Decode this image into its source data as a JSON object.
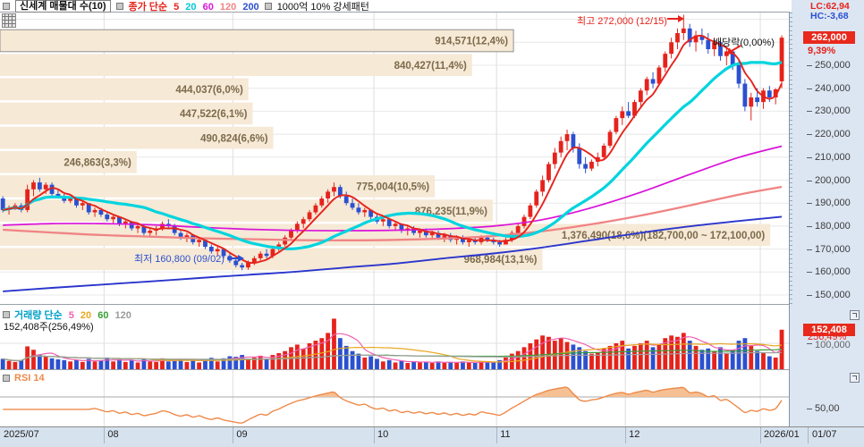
{
  "legend": {
    "stock_title": "신세계 매물대 수(10)",
    "price_ma": {
      "label": "종가 단순",
      "label_color": "#e5231c",
      "periods": [
        {
          "t": "5",
          "c": "#e5231c"
        },
        {
          "t": "20",
          "c": "#00c8d8"
        },
        {
          "t": "60",
          "c": "#d913d9"
        },
        {
          "t": "120",
          "c": "#f08484"
        },
        {
          "t": "200",
          "c": "#2b50d0"
        }
      ]
    },
    "pattern": "1000억 10% 강세패턴"
  },
  "volume": {
    "legend": {
      "label": "거래량 단순",
      "label_color": "#00a0c8",
      "periods": [
        {
          "t": "5",
          "c": "#f060b0"
        },
        {
          "t": "20",
          "c": "#e8a820"
        },
        {
          "t": "60",
          "c": "#3aa03a"
        },
        {
          "t": "120",
          "c": "#9a9a9a"
        }
      ]
    },
    "status": "152,408주(256,49%)"
  },
  "rsi_panel": {
    "title": "RSI 14",
    "color": "#ee8a4a"
  },
  "corner": {
    "lc": "LC:62,94",
    "hc": "HC:-3,68",
    "lc_color": "#e5231c",
    "hc_color": "#2b50d0"
  },
  "axis": {
    "price_badge": "262,000",
    "price_badge_pct": "9,39%",
    "price_ticks": [
      {
        "v": 250000,
        "label": "250,000"
      },
      {
        "v": 240000,
        "label": "240,000"
      },
      {
        "v": 230000,
        "label": "230,000"
      },
      {
        "v": 220000,
        "label": "220,000"
      },
      {
        "v": 210000,
        "label": "210,000"
      },
      {
        "v": 200000,
        "label": "200,000"
      },
      {
        "v": 190000,
        "label": "190,000"
      },
      {
        "v": 180000,
        "label": "180,000"
      },
      {
        "v": 170000,
        "label": "170,000"
      },
      {
        "v": 160000,
        "label": "160,000"
      },
      {
        "v": 150000,
        "label": "150,000"
      }
    ],
    "volume_badge": "152,408",
    "volume_badge_pct": "256,49%",
    "volume_grid_label": "100,000",
    "rsi_mid_label": "50,00",
    "time_right_label": "01/07"
  },
  "annotations": {
    "high": {
      "text": "최고 272,000 (12/15)",
      "day": 111,
      "price": 272000,
      "color": "#e5231c"
    },
    "low": {
      "text": "최저 160,800 (09/02)",
      "day": 39,
      "price": 160800,
      "color": "#2b50d0"
    },
    "dividend": {
      "text": "배당락(0,00%)",
      "day": 119,
      "color": "#111111",
      "marker_color": "#e5231c"
    }
  },
  "colors": {
    "up": "#e5231c",
    "down": "#2b50d0",
    "profile_fill": "#f6e9d6",
    "profile_text": "#7c6a4b",
    "ma5": "#e5231c",
    "ma20": "#00d4de",
    "ma60": "#d913d9",
    "ma120": "#f08484",
    "ma200": "#2a35cc",
    "vma5": "#f060b0",
    "vma20": "#e8a820",
    "vma60": "#3aa03a",
    "vma120": "#a0a0a0",
    "rsi_line": "#ee8a4a",
    "rsi_fill": "#f4b988",
    "badge_bg": "#e8291c",
    "grid": "#e8e8e8",
    "month_grid": "#dedede"
  },
  "chart_data": {
    "type": "candlestick",
    "title": "신세계 매물대 수(10)",
    "price_unit": "KRW",
    "ylim": [
      147000,
      266000
    ],
    "months": [
      {
        "label": "2025/07",
        "boundary_day": -0.5
      },
      {
        "label": "08",
        "boundary_day": 16.5
      },
      {
        "label": "09",
        "boundary_day": 37.5
      },
      {
        "label": "10",
        "boundary_day": 60.5
      },
      {
        "label": "11",
        "boundary_day": 80.5
      },
      {
        "label": "12",
        "boundary_day": 101.5
      },
      {
        "label": "2026/01",
        "boundary_day": 123.5
      }
    ],
    "volume_profile": {
      "bars": [
        {
          "label": "914,571(12,4%)",
          "pct": 12.4,
          "selected": true
        },
        {
          "label": "840,427(11,4%)",
          "pct": 11.4,
          "selected": false
        },
        {
          "label": "444,037(6,0%)",
          "pct": 6.0,
          "selected": false
        },
        {
          "label": "447,522(6,1%)",
          "pct": 6.1,
          "selected": false
        },
        {
          "label": "490,824(6,6%)",
          "pct": 6.6,
          "selected": false
        },
        {
          "label": "246,863(3,3%)",
          "pct": 3.3,
          "selected": false
        },
        {
          "label": "775,004(10,5%)",
          "pct": 10.5,
          "selected": false
        },
        {
          "label": "876,235(11,9%)",
          "pct": 11.9,
          "selected": false
        },
        {
          "label": "1,376,490(18,6%)(182,700,00 ~ 172,100,00)",
          "pct": 18.6,
          "selected": false
        },
        {
          "label": "968,984(13,1%)",
          "pct": 13.1,
          "selected": false
        }
      ]
    },
    "ma_long": {
      "days": [
        0,
        8,
        16,
        24,
        32,
        40,
        48,
        56,
        64,
        72,
        80,
        88,
        96,
        104,
        112,
        120,
        127
      ],
      "ma60": [
        180400,
        181100,
        181100,
        180600,
        179500,
        178600,
        178100,
        178000,
        178200,
        178800,
        180000,
        182800,
        188000,
        194700,
        202500,
        209900,
        214800
      ],
      "ma120": [
        178400,
        177200,
        176100,
        175400,
        174700,
        174300,
        173900,
        173800,
        174000,
        174600,
        175700,
        177800,
        180800,
        184600,
        189000,
        193700,
        197100
      ],
      "ma200": [
        151600,
        153100,
        154500,
        155900,
        157400,
        158800,
        160200,
        162000,
        163700,
        166000,
        168100,
        170700,
        173900,
        177100,
        179900,
        182200,
        184100
      ]
    },
    "rsi": {
      "period": 14,
      "upper_level": 70,
      "mid_level": 50
    },
    "volume_gridline": 100000,
    "last_volume": 152408,
    "candles": [
      [
        192000,
        193000,
        186000,
        187000,
        40000
      ],
      [
        187000,
        189000,
        185000,
        188000,
        32000
      ],
      [
        188000,
        190000,
        187000,
        189000,
        28000
      ],
      [
        189000,
        190000,
        186000,
        187000,
        35000
      ],
      [
        187000,
        198000,
        186000,
        196000,
        88000
      ],
      [
        196000,
        200000,
        193000,
        199000,
        75000
      ],
      [
        199000,
        201000,
        195000,
        196000,
        55000
      ],
      [
        196000,
        199000,
        194000,
        198000,
        48000
      ],
      [
        198000,
        199000,
        193000,
        194000,
        42000
      ],
      [
        194000,
        196000,
        192000,
        193000,
        38000
      ],
      [
        193000,
        194000,
        190000,
        191000,
        35000
      ],
      [
        191000,
        193000,
        190000,
        192000,
        30000
      ],
      [
        192000,
        192000,
        188000,
        189000,
        36000
      ],
      [
        189000,
        191000,
        187000,
        190000,
        28000
      ],
      [
        190000,
        190000,
        185000,
        186000,
        40000
      ],
      [
        186000,
        188000,
        184000,
        187000,
        30000
      ],
      [
        187000,
        188000,
        184000,
        185000,
        33000
      ],
      [
        185000,
        186000,
        182000,
        183000,
        45000
      ],
      [
        183000,
        185000,
        181000,
        184000,
        30000
      ],
      [
        184000,
        184000,
        180000,
        181000,
        38000
      ],
      [
        181000,
        183000,
        179000,
        182000,
        28000
      ],
      [
        182000,
        182000,
        178000,
        179000,
        35000
      ],
      [
        179000,
        181000,
        177000,
        180000,
        26000
      ],
      [
        180000,
        181000,
        176000,
        177000,
        40000
      ],
      [
        177000,
        179000,
        175000,
        178000,
        30000
      ],
      [
        178000,
        180000,
        176000,
        179000,
        28000
      ],
      [
        179000,
        182000,
        178000,
        181000,
        42000
      ],
      [
        181000,
        183000,
        179000,
        180000,
        30000
      ],
      [
        180000,
        181000,
        176000,
        177000,
        36000
      ],
      [
        177000,
        178000,
        174000,
        175000,
        40000
      ],
      [
        175000,
        177000,
        173000,
        176000,
        28000
      ],
      [
        176000,
        176000,
        172000,
        173000,
        38000
      ],
      [
        173000,
        175000,
        171000,
        174000,
        26000
      ],
      [
        174000,
        174000,
        170000,
        171000,
        36000
      ],
      [
        171000,
        172000,
        168000,
        169000,
        44000
      ],
      [
        169000,
        171000,
        167000,
        170000,
        30000
      ],
      [
        170000,
        170000,
        166000,
        167000,
        42000
      ],
      [
        167000,
        168000,
        164000,
        165000,
        50000
      ],
      [
        165000,
        166000,
        162000,
        163000,
        48000
      ],
      [
        163000,
        164000,
        160800,
        162000,
        55000
      ],
      [
        162000,
        165000,
        161000,
        164000,
        40000
      ],
      [
        164000,
        167000,
        163000,
        166000,
        45000
      ],
      [
        166000,
        169000,
        165000,
        168000,
        52000
      ],
      [
        168000,
        170000,
        166000,
        167000,
        38000
      ],
      [
        167000,
        171000,
        166000,
        170000,
        55000
      ],
      [
        170000,
        173000,
        169000,
        172000,
        62000
      ],
      [
        172000,
        176000,
        171000,
        175000,
        70000
      ],
      [
        175000,
        179000,
        174000,
        178000,
        85000
      ],
      [
        178000,
        182000,
        177000,
        181000,
        95000
      ],
      [
        181000,
        184000,
        179000,
        183000,
        80000
      ],
      [
        183000,
        187000,
        182000,
        186000,
        100000
      ],
      [
        186000,
        190000,
        185000,
        189000,
        110000
      ],
      [
        189000,
        193000,
        188000,
        192000,
        120000
      ],
      [
        192000,
        196000,
        190000,
        195000,
        140000
      ],
      [
        195000,
        199000,
        193000,
        197000,
        195000
      ],
      [
        197000,
        198000,
        192000,
        193000,
        120000
      ],
      [
        193000,
        195000,
        189000,
        190000,
        90000
      ],
      [
        190000,
        192000,
        187000,
        188000,
        70000
      ],
      [
        188000,
        190000,
        185000,
        186000,
        60000
      ],
      [
        186000,
        188000,
        184000,
        187000,
        45000
      ],
      [
        187000,
        187000,
        183000,
        184000,
        50000
      ],
      [
        184000,
        185000,
        181000,
        182000,
        40000
      ],
      [
        182000,
        184000,
        180000,
        183000,
        30000
      ],
      [
        183000,
        183000,
        179000,
        180000,
        35000
      ],
      [
        180000,
        182000,
        178000,
        181000,
        26000
      ],
      [
        181000,
        181000,
        177000,
        178000,
        32000
      ],
      [
        178000,
        180000,
        176000,
        179000,
        24000
      ],
      [
        179000,
        180000,
        176000,
        177000,
        30000
      ],
      [
        177000,
        179000,
        175000,
        178000,
        26000
      ],
      [
        178000,
        179000,
        175000,
        176000,
        28000
      ],
      [
        176000,
        178000,
        174000,
        177000,
        24000
      ],
      [
        177000,
        178000,
        174000,
        175000,
        30000
      ],
      [
        175000,
        177000,
        173000,
        176000,
        25000
      ],
      [
        176000,
        177000,
        173000,
        174000,
        28000
      ],
      [
        174000,
        176000,
        172000,
        175000,
        24000
      ],
      [
        175000,
        176000,
        172000,
        173000,
        30000
      ],
      [
        173000,
        175000,
        171000,
        174000,
        26000
      ],
      [
        174000,
        175000,
        172000,
        173000,
        24000
      ],
      [
        173000,
        176000,
        172000,
        175000,
        30000
      ],
      [
        175000,
        176000,
        173000,
        174000,
        26000
      ],
      [
        174000,
        175000,
        172000,
        173000,
        28000
      ],
      [
        173000,
        174000,
        171000,
        172000,
        35000
      ],
      [
        172000,
        175000,
        172000,
        174000,
        45000
      ],
      [
        174000,
        178000,
        173000,
        177000,
        60000
      ],
      [
        177000,
        181000,
        176000,
        180000,
        70000
      ],
      [
        180000,
        185000,
        179000,
        184000,
        85000
      ],
      [
        184000,
        190000,
        183000,
        189000,
        100000
      ],
      [
        189000,
        196000,
        188000,
        195000,
        115000
      ],
      [
        195000,
        202000,
        193000,
        200000,
        130000
      ],
      [
        200000,
        208000,
        199000,
        207000,
        125000
      ],
      [
        207000,
        214000,
        205000,
        212000,
        110000
      ],
      [
        212000,
        219000,
        210000,
        217000,
        120000
      ],
      [
        217000,
        222000,
        213000,
        220000,
        105000
      ],
      [
        220000,
        221000,
        212000,
        214000,
        95000
      ],
      [
        214000,
        216000,
        205000,
        207000,
        85000
      ],
      [
        207000,
        210000,
        203000,
        205000,
        70000
      ],
      [
        205000,
        209000,
        204000,
        208000,
        60000
      ],
      [
        208000,
        212000,
        206000,
        210000,
        65000
      ],
      [
        210000,
        216000,
        209000,
        215000,
        80000
      ],
      [
        215000,
        222000,
        214000,
        221000,
        90000
      ],
      [
        221000,
        228000,
        220000,
        227000,
        100000
      ],
      [
        227000,
        232000,
        224000,
        230000,
        110000
      ],
      [
        230000,
        234000,
        227000,
        228000,
        80000
      ],
      [
        228000,
        235000,
        227000,
        234000,
        90000
      ],
      [
        234000,
        240000,
        232000,
        239000,
        100000
      ],
      [
        239000,
        245000,
        237000,
        244000,
        110000
      ],
      [
        244000,
        247000,
        240000,
        242000,
        85000
      ],
      [
        242000,
        250000,
        241000,
        249000,
        95000
      ],
      [
        249000,
        256000,
        247000,
        255000,
        120000
      ],
      [
        255000,
        262000,
        253000,
        260000,
        130000
      ],
      [
        260000,
        266000,
        257000,
        264000,
        125000
      ],
      [
        264000,
        272000,
        261000,
        266000,
        140000
      ],
      [
        266000,
        268000,
        258000,
        260000,
        110000
      ],
      [
        260000,
        265000,
        256000,
        263000,
        90000
      ],
      [
        263000,
        266000,
        259000,
        261000,
        75000
      ],
      [
        261000,
        264000,
        255000,
        257000,
        80000
      ],
      [
        257000,
        262000,
        254000,
        260000,
        70000
      ],
      [
        260000,
        261000,
        252000,
        254000,
        85000
      ],
      [
        254000,
        258000,
        250000,
        256000,
        60000
      ],
      [
        256000,
        257000,
        248000,
        250000,
        75000
      ],
      [
        250000,
        252000,
        240000,
        242000,
        110000
      ],
      [
        242000,
        244000,
        230000,
        232000,
        120000
      ],
      [
        232000,
        238000,
        226000,
        236000,
        90000
      ],
      [
        236000,
        240000,
        232000,
        234000,
        70000
      ],
      [
        234000,
        240000,
        231000,
        239000,
        65000
      ],
      [
        239000,
        241000,
        234000,
        236000,
        50000
      ],
      [
        236000,
        240000,
        233000,
        239500,
        45000
      ],
      [
        243000,
        263000,
        240000,
        262000,
        152408
      ]
    ]
  }
}
